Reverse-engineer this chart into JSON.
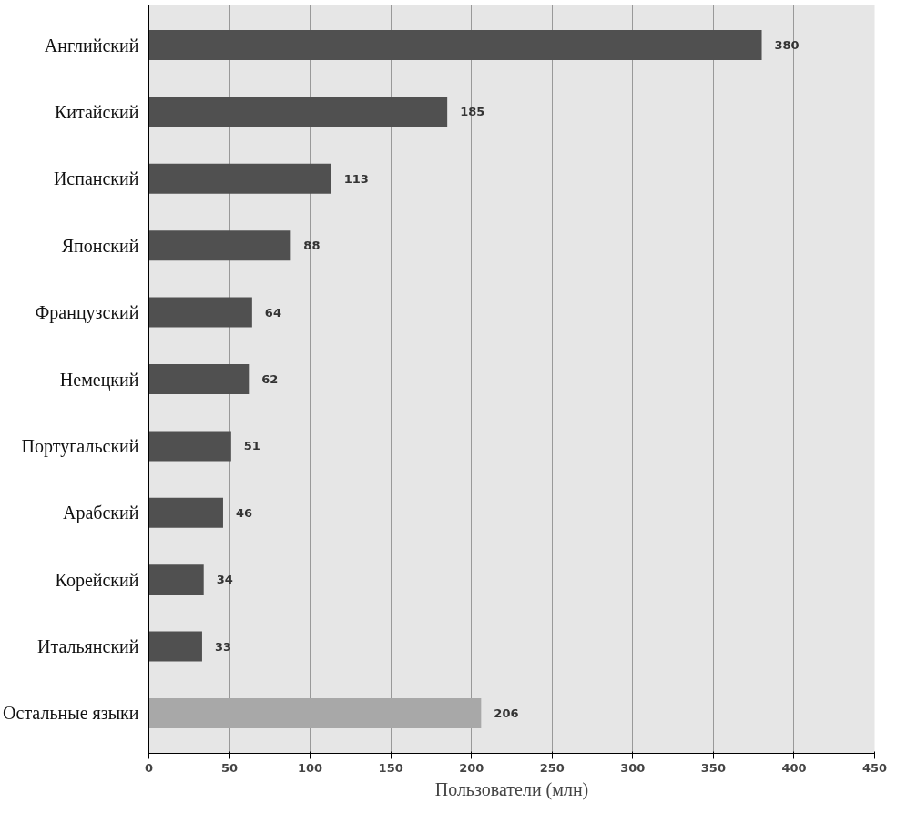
{
  "chart_data": {
    "type": "bar",
    "orientation": "horizontal",
    "xlabel": "Пользователи (млн)",
    "categories": [
      "Английский",
      "Китайский",
      "Испанский",
      "Японский",
      "Французский",
      "Немецкий",
      "Португальский",
      "Арабский",
      "Корейский",
      "Итальянский",
      "Остальные языки"
    ],
    "values": [
      380,
      185,
      113,
      88,
      64,
      62,
      51,
      46,
      34,
      33,
      206
    ],
    "colors": [
      "#505050",
      "#505050",
      "#505050",
      "#505050",
      "#505050",
      "#505050",
      "#505050",
      "#505050",
      "#505050",
      "#505050",
      "#a8a8a8"
    ],
    "xlim": [
      0,
      450
    ],
    "xticks": [
      0,
      50,
      100,
      150,
      200,
      250,
      300,
      350,
      400,
      450
    ],
    "grid": "x",
    "data_labels": true
  }
}
